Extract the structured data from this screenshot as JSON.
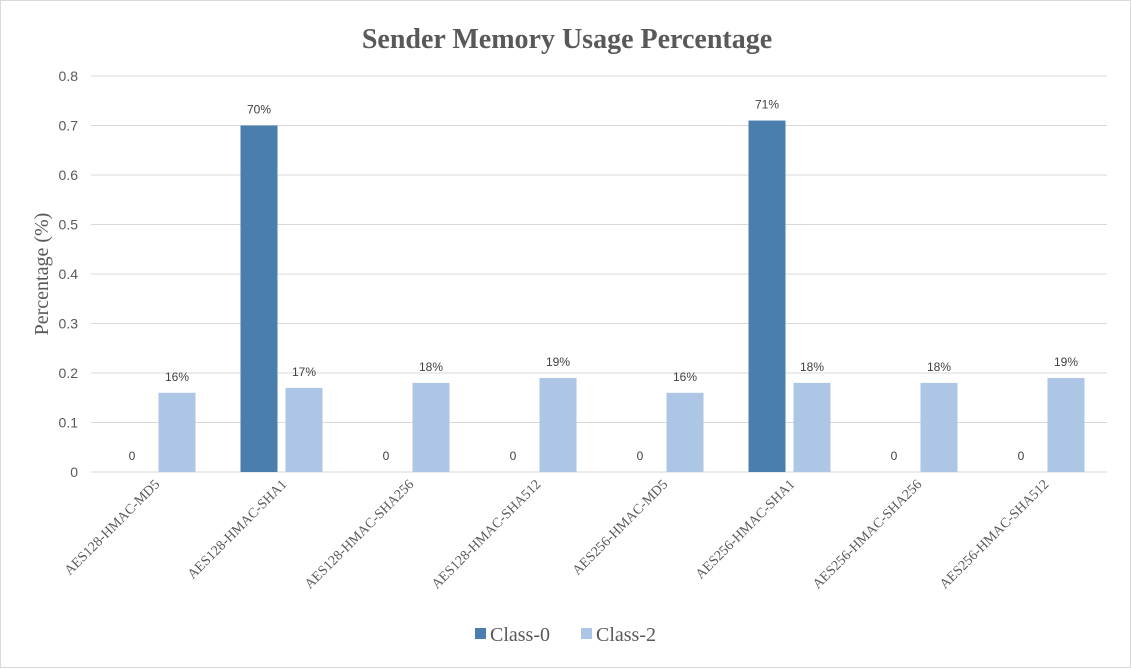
{
  "chart_data": {
    "type": "bar",
    "title": "Sender Memory Usage Percentage",
    "xlabel": "",
    "ylabel": "Percentage (%)",
    "ylim": [
      0,
      0.8
    ],
    "yticks": [
      "0",
      "0.1",
      "0.2",
      "0.3",
      "0.4",
      "0.5",
      "0.6",
      "0.7",
      "0.8"
    ],
    "grid": true,
    "legend_position": "bottom",
    "categories": [
      "AES128-HMAC-MD5",
      "AES128-HMAC-SHA1",
      "AES128-HMAC-SHA256",
      "AES128-HMAC-SHA512",
      "AES256-HMAC-MD5",
      "AES256-HMAC-SHA1",
      "AES256-HMAC-SHA256",
      "AES256-HMAC-SHA512"
    ],
    "series": [
      {
        "name": "Class-0",
        "color": "#4a7eae",
        "values": [
          0,
          0.7,
          0,
          0,
          0,
          0.71,
          0,
          0
        ],
        "data_labels": [
          "0",
          "70%",
          "0",
          "0",
          "0",
          "71%",
          "0",
          "0"
        ]
      },
      {
        "name": "Class-2",
        "color": "#aec6e5",
        "values": [
          0.16,
          0.17,
          0.18,
          0.19,
          0.16,
          0.18,
          0.18,
          0.19
        ],
        "data_labels": [
          "16%",
          "17%",
          "18%",
          "19%",
          "16%",
          "18%",
          "18%",
          "19%"
        ]
      }
    ]
  }
}
